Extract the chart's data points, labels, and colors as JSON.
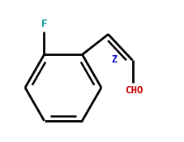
{
  "bg_color": "#ffffff",
  "line_color": "#000000",
  "F_color": "#009999",
  "CHO_color": "#cc0000",
  "Z_color": "#0000cc",
  "line_width": 2.0,
  "font_size_label": 9,
  "font_size_Z": 8.5,
  "F_label": "F",
  "Z_label": "Z",
  "CHO_label": "CHO",
  "figsize": [
    2.27,
    1.75
  ],
  "dpi": 100
}
